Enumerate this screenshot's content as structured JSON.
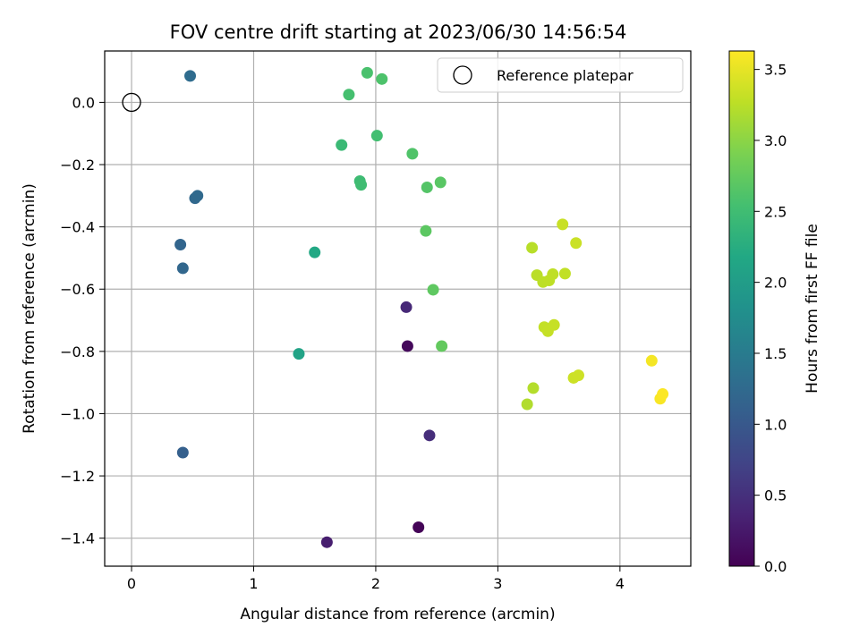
{
  "chart_data": {
    "type": "scatter",
    "title": "FOV centre drift starting at 2023/06/30 14:56:54",
    "xlabel": "Angular distance from reference (arcmin)",
    "ylabel": "Rotation from reference (arcmin)",
    "xlim": [
      -0.22,
      4.58
    ],
    "ylim": [
      -1.49,
      0.165
    ],
    "xticks": [
      0,
      1,
      2,
      3,
      4
    ],
    "yticks": [
      0.0,
      -0.2,
      -0.4,
      -0.6,
      -0.8,
      -1.0,
      -1.2,
      -1.4
    ],
    "grid": true,
    "legend": {
      "placement": "top-right",
      "entries": [
        "Reference platepar"
      ]
    },
    "reference_point": {
      "label": "Reference platepar",
      "x": 0.0,
      "y": 0.0,
      "marker": "hollow-circle"
    },
    "colorbar": {
      "label": "Hours from first FF file",
      "colormap": "viridis",
      "range": [
        0.0,
        3.63
      ],
      "ticks": [
        0.0,
        0.5,
        1.0,
        1.5,
        2.0,
        2.5,
        3.0,
        3.5
      ]
    },
    "points": [
      {
        "x": 2.35,
        "y": -1.365,
        "c": 0.03
      },
      {
        "x": 2.26,
        "y": -0.783,
        "c": 0.08
      },
      {
        "x": 1.6,
        "y": -1.413,
        "c": 0.3
      },
      {
        "x": 2.25,
        "y": -0.658,
        "c": 0.42
      },
      {
        "x": 2.44,
        "y": -1.07,
        "c": 0.48
      },
      {
        "x": 0.42,
        "y": -1.125,
        "c": 1.1
      },
      {
        "x": 0.4,
        "y": -0.457,
        "c": 1.18
      },
      {
        "x": 0.42,
        "y": -0.533,
        "c": 1.2
      },
      {
        "x": 0.52,
        "y": -0.308,
        "c": 1.22
      },
      {
        "x": 0.54,
        "y": -0.3,
        "c": 1.24
      },
      {
        "x": 0.48,
        "y": 0.085,
        "c": 1.28
      },
      {
        "x": 1.37,
        "y": -0.808,
        "c": 2.1
      },
      {
        "x": 1.5,
        "y": -0.482,
        "c": 2.18
      },
      {
        "x": 1.72,
        "y": -0.137,
        "c": 2.45
      },
      {
        "x": 1.87,
        "y": -0.253,
        "c": 2.48
      },
      {
        "x": 1.88,
        "y": -0.265,
        "c": 2.5
      },
      {
        "x": 2.01,
        "y": -0.107,
        "c": 2.52
      },
      {
        "x": 1.78,
        "y": 0.025,
        "c": 2.55
      },
      {
        "x": 1.93,
        "y": 0.095,
        "c": 2.58
      },
      {
        "x": 2.05,
        "y": 0.075,
        "c": 2.6
      },
      {
        "x": 2.3,
        "y": -0.165,
        "c": 2.62
      },
      {
        "x": 2.42,
        "y": -0.273,
        "c": 2.65
      },
      {
        "x": 2.53,
        "y": -0.257,
        "c": 2.68
      },
      {
        "x": 2.41,
        "y": -0.413,
        "c": 2.7
      },
      {
        "x": 2.47,
        "y": -0.602,
        "c": 2.72
      },
      {
        "x": 2.54,
        "y": -0.783,
        "c": 2.75
      },
      {
        "x": 3.24,
        "y": -0.97,
        "c": 3.2
      },
      {
        "x": 3.29,
        "y": -0.918,
        "c": 3.22
      },
      {
        "x": 3.28,
        "y": -0.467,
        "c": 3.24
      },
      {
        "x": 3.32,
        "y": -0.555,
        "c": 3.25
      },
      {
        "x": 3.37,
        "y": -0.577,
        "c": 3.26
      },
      {
        "x": 3.42,
        "y": -0.572,
        "c": 3.27
      },
      {
        "x": 3.45,
        "y": -0.552,
        "c": 3.28
      },
      {
        "x": 3.55,
        "y": -0.55,
        "c": 3.29
      },
      {
        "x": 3.38,
        "y": -0.722,
        "c": 3.3
      },
      {
        "x": 3.41,
        "y": -0.735,
        "c": 3.31
      },
      {
        "x": 3.46,
        "y": -0.715,
        "c": 3.32
      },
      {
        "x": 3.53,
        "y": -0.392,
        "c": 3.33
      },
      {
        "x": 3.64,
        "y": -0.452,
        "c": 3.34
      },
      {
        "x": 3.62,
        "y": -0.885,
        "c": 3.35
      },
      {
        "x": 3.66,
        "y": -0.877,
        "c": 3.36
      },
      {
        "x": 4.26,
        "y": -0.83,
        "c": 3.58
      },
      {
        "x": 4.33,
        "y": -0.952,
        "c": 3.6
      },
      {
        "x": 4.35,
        "y": -0.937,
        "c": 3.62
      }
    ]
  }
}
